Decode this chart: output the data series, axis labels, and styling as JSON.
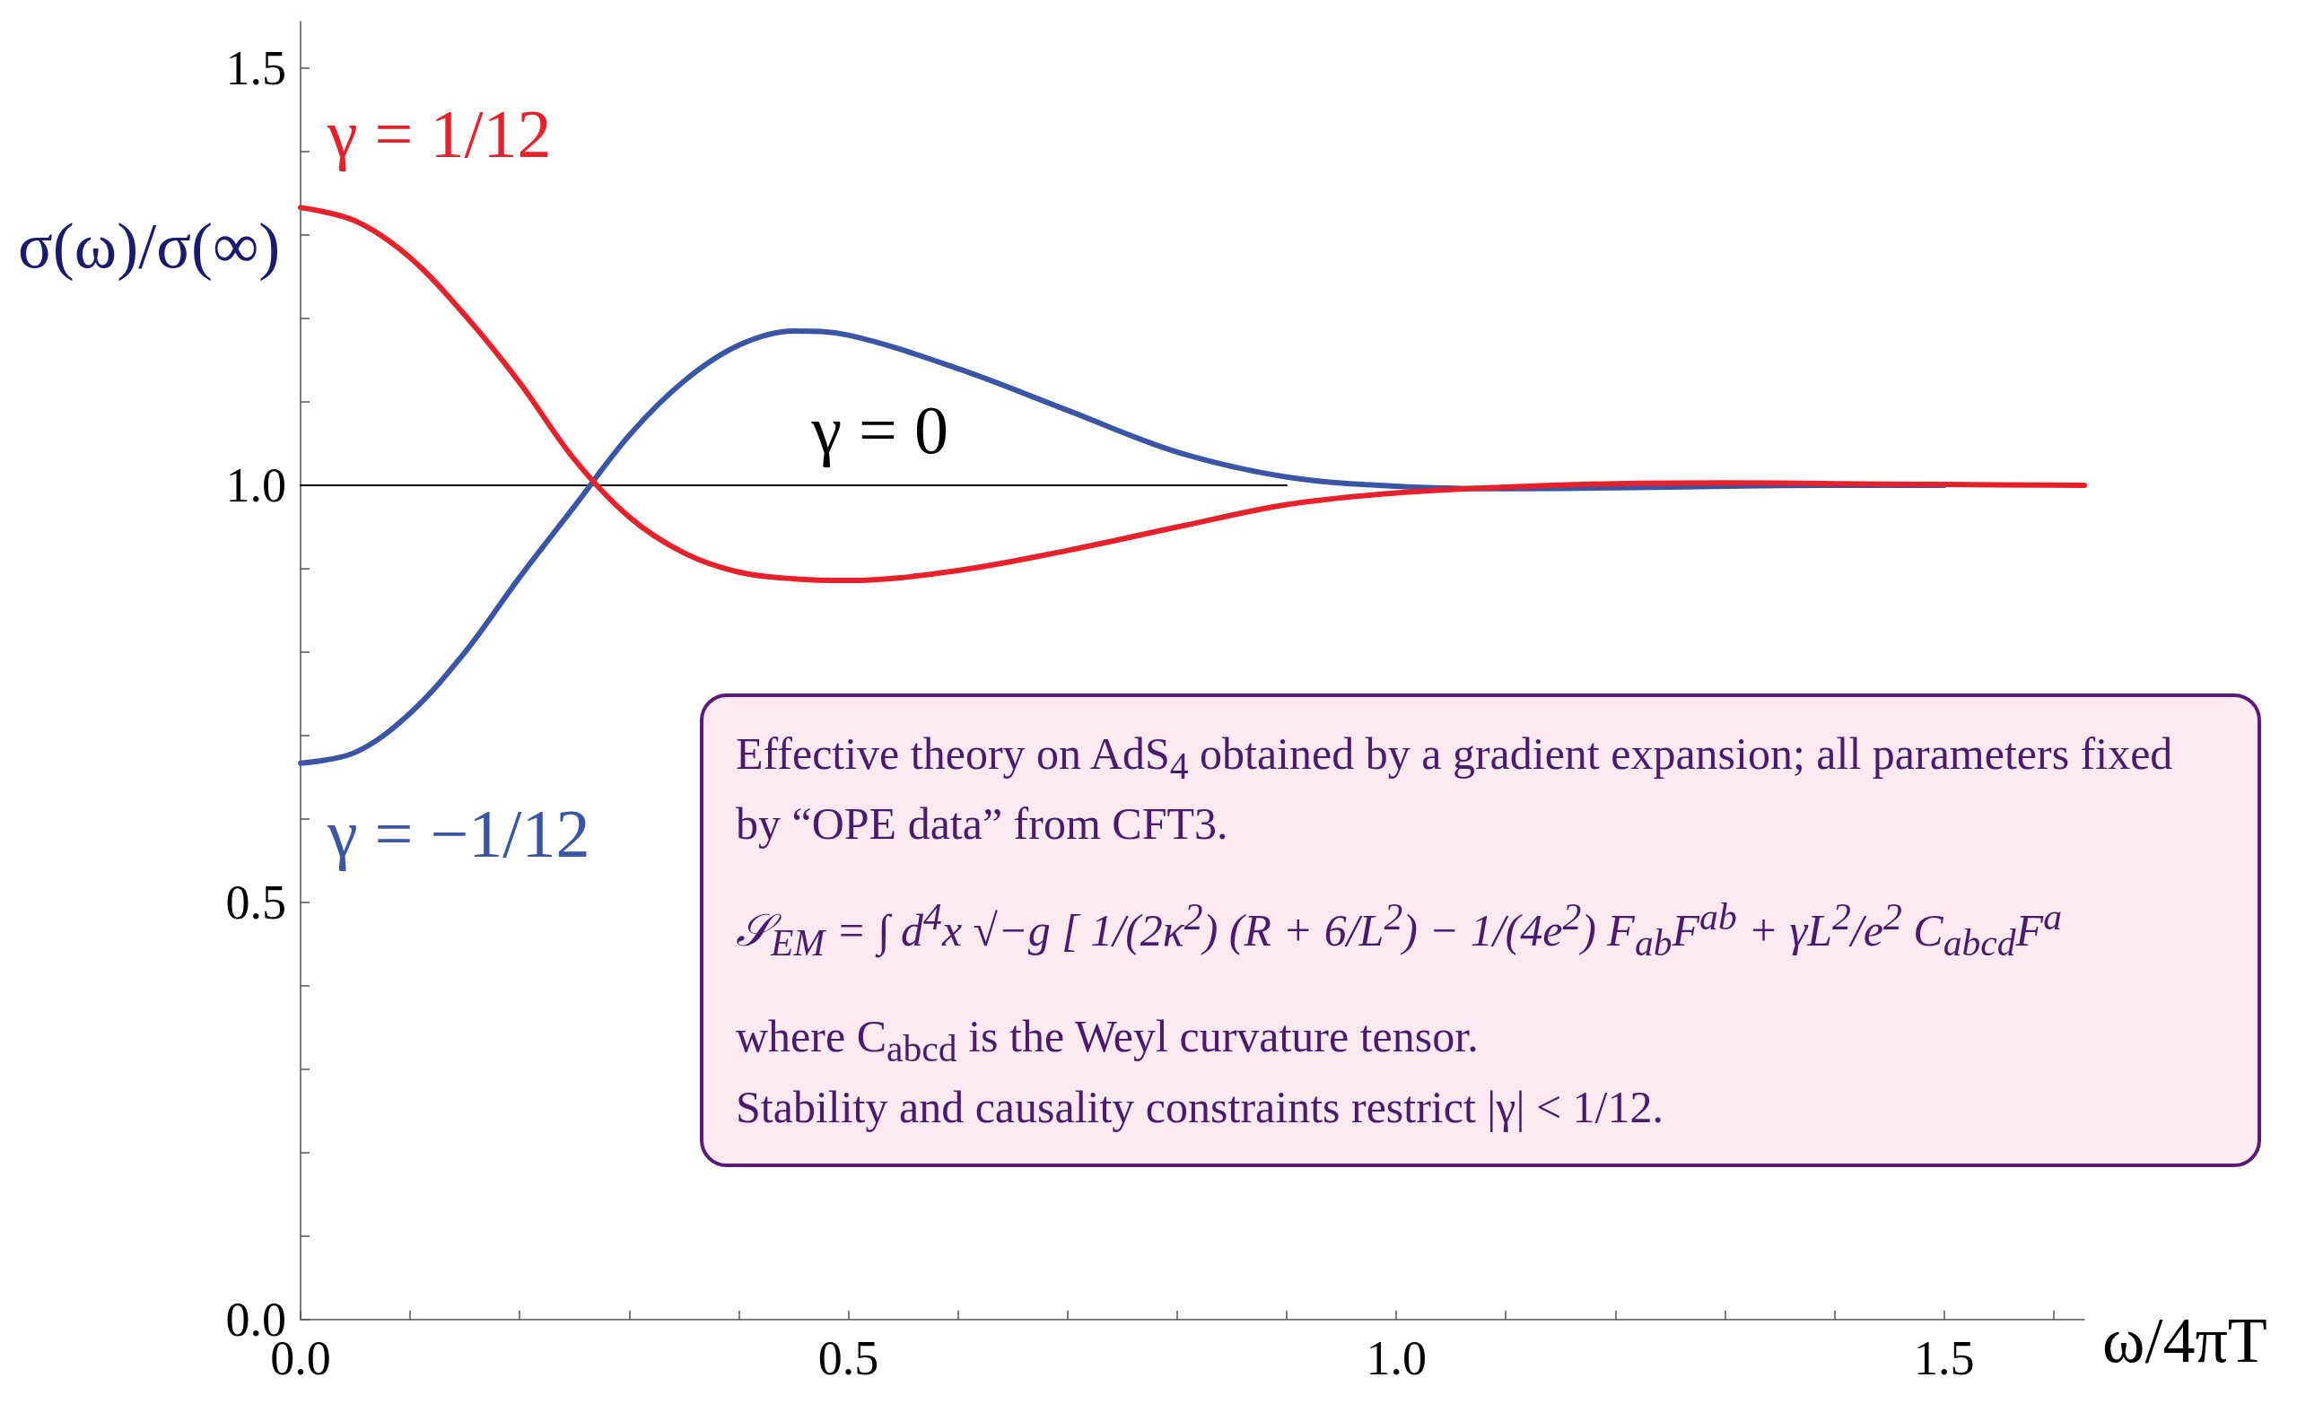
{
  "chart_data": {
    "type": "line",
    "xlabel": "ω/4πT",
    "ylabel": "σ(ω)/σ(∞)",
    "x": [
      0,
      0.05,
      0.1,
      0.15,
      0.2,
      0.25,
      0.3,
      0.35,
      0.4,
      0.45,
      0.5,
      0.6,
      0.7,
      0.8,
      0.9,
      1.0,
      1.1,
      1.2,
      1.3,
      1.4,
      1.5,
      1.628
    ],
    "series": [
      {
        "name": "γ = 1/12",
        "color": "#e8202a",
        "values": [
          1.333,
          1.317,
          1.273,
          1.204,
          1.123,
          1.031,
          0.962,
          0.919,
          0.896,
          0.888,
          0.886,
          0.898,
          0.922,
          0.95,
          0.977,
          0.991,
          0.998,
          1.002,
          1.003,
          1.002,
          1.001,
          1.0
        ]
      },
      {
        "name": "γ = −1/12",
        "color": "#3a55a5",
        "values": [
          0.667,
          0.68,
          0.727,
          0.8,
          0.89,
          0.975,
          1.06,
          1.125,
          1.168,
          1.185,
          1.18,
          1.14,
          1.09,
          1.04,
          1.01,
          0.999,
          0.996,
          0.997,
          0.999,
          1.0,
          1.0,
          null
        ]
      },
      {
        "name": "γ = 0",
        "color": "#000000",
        "values": [
          1.0,
          1.0,
          1.0,
          1.0,
          1.0,
          1.0,
          1.0,
          1.0,
          1.0,
          1.0,
          1.0,
          1.0,
          1.0,
          1.0,
          1.0,
          null,
          null,
          null,
          null,
          null,
          null,
          null
        ]
      }
    ],
    "xlim": [
      0,
      1.628
    ],
    "ylim": [
      0,
      1.556
    ],
    "xticks": [
      {
        "value": 0,
        "label": "0.0"
      },
      {
        "value": 0.1,
        "label": null
      },
      {
        "value": 0.2,
        "label": null
      },
      {
        "value": 0.3,
        "label": null
      },
      {
        "value": 0.4,
        "label": null
      },
      {
        "value": 0.5,
        "label": "0.5"
      },
      {
        "value": 0.6,
        "label": null
      },
      {
        "value": 0.7,
        "label": null
      },
      {
        "value": 0.8,
        "label": null
      },
      {
        "value": 0.9,
        "label": null
      },
      {
        "value": 1.0,
        "label": "1.0"
      },
      {
        "value": 1.1,
        "label": null
      },
      {
        "value": 1.2,
        "label": null
      },
      {
        "value": 1.3,
        "label": null
      },
      {
        "value": 1.4,
        "label": null
      },
      {
        "value": 1.5,
        "label": "1.5"
      },
      {
        "value": 1.6,
        "label": null
      }
    ],
    "yticks": [
      {
        "value": 0,
        "label": "0.0"
      },
      {
        "value": 0.1,
        "label": null
      },
      {
        "value": 0.2,
        "label": null
      },
      {
        "value": 0.3,
        "label": null
      },
      {
        "value": 0.4,
        "label": null
      },
      {
        "value": 0.5,
        "label": "0.5"
      },
      {
        "value": 0.6,
        "label": null
      },
      {
        "value": 0.7,
        "label": null
      },
      {
        "value": 0.8,
        "label": null
      },
      {
        "value": 0.9,
        "label": null
      },
      {
        "value": 1.0,
        "label": "1.0"
      },
      {
        "value": 1.1,
        "label": null
      },
      {
        "value": 1.2,
        "label": null
      },
      {
        "value": 1.3,
        "label": null
      },
      {
        "value": 1.4,
        "label": null
      },
      {
        "value": 1.5,
        "label": "1.5"
      }
    ],
    "annotations": [
      "Effective theory on AdS$_{4}$ obtained by a gradient expansion; all parameters fixed by “OPE data” from CFT3.",
      "𝒮$_{EM}$ = ∫ d$^{4}$x √−g [ 1/(2κ$^{2}$) (R + 6/L$^{2}$) − 1/(4e$^{2}$) F$_{ab}$F$^{ab}$ + γL$^{2}$/e$^{2}$ C$_{abcd}$F$^{a}$",
      "where C$_{abcd}$ is the Weyl curvature tensor.",
      "Stability and causality constraints restrict |γ| < 1/12."
    ]
  }
}
